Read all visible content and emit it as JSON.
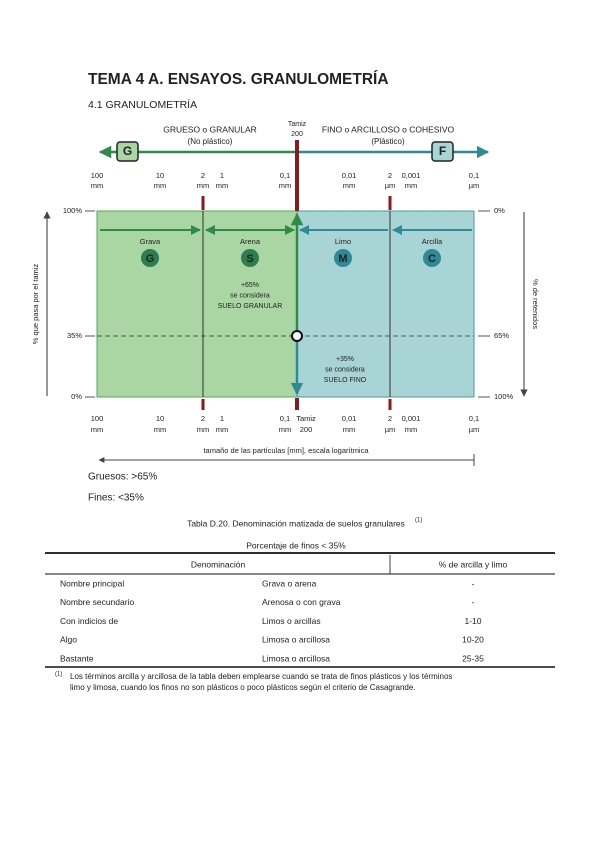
{
  "header": {
    "title": "TEMA 4 A. ENSAYOS. GRANULOMETRÍA",
    "subtitle": "4.1 GRANULOMETRÍA"
  },
  "diagram": {
    "coarse_label": "GRUESO o GRANULAR",
    "coarse_note": "(No plástico)",
    "fine_label": "FINO o ARCILLOSO o COHESIVO",
    "fine_note": "(Plástico)",
    "sieve_top": [
      "Tamiz",
      "200"
    ],
    "coarse_badge": "G",
    "fine_badge": "F",
    "top_scale": [
      {
        "value": "100",
        "unit": "mm"
      },
      {
        "value": "10",
        "unit": "mm"
      },
      {
        "value": "2",
        "unit": "mm"
      },
      {
        "value": "1",
        "unit": "mm"
      },
      {
        "value": "0,1",
        "unit": "mm"
      },
      {
        "value": "0,01",
        "unit": "mm"
      },
      {
        "value": "2",
        "unit": "µm"
      },
      {
        "value": "0,001",
        "unit": "mm"
      },
      {
        "value": "0,1",
        "unit": "µm"
      }
    ],
    "bottom_scale": [
      {
        "value": "100",
        "unit": "mm"
      },
      {
        "value": "10",
        "unit": "mm"
      },
      {
        "value": "2",
        "unit": "mm"
      },
      {
        "value": "1",
        "unit": "mm"
      },
      {
        "value": "0,1",
        "unit": "mm"
      },
      {
        "value": "Tamiz",
        "unit": "200"
      },
      {
        "value": "0,01",
        "unit": "mm"
      },
      {
        "value": "2",
        "unit": "µm"
      },
      {
        "value": "0,001",
        "unit": "mm"
      },
      {
        "value": "0,1",
        "unit": "µm"
      }
    ],
    "left_axis": {
      "title": "% que pasa por el tamiz",
      "ticks": [
        "100%",
        "35%",
        "0%"
      ]
    },
    "right_axis": {
      "title": "% de retenidos",
      "ticks": [
        "0%",
        "65%",
        "100%"
      ]
    },
    "zones": [
      {
        "name": "Grava",
        "badge": "G"
      },
      {
        "name": "Arena",
        "badge": "S"
      },
      {
        "name": "Limo",
        "badge": "M"
      },
      {
        "name": "Arcilla",
        "badge": "C"
      }
    ],
    "coarse_box": [
      "+65%",
      "se considera",
      "SUELO GRANULAR"
    ],
    "fine_box": [
      "+35%",
      "se considera",
      "SUELO FINO"
    ],
    "x_axis_title": "tamaño de las partículas [mm], escala logarítmica"
  },
  "criteria": [
    "Gruesos: >65%",
    "Fines: <35%"
  ],
  "table": {
    "caption": "Tabla D.20. Denominación matizada de suelos granulares",
    "caption_ref": "(1)",
    "group": "Porcentaje de finos < 35%",
    "headers": [
      "Denominación",
      "% de arcilla y limo"
    ],
    "rows": [
      [
        "Nombre principal",
        "Grava o arena",
        "-"
      ],
      [
        "Nombre secundario",
        "Arenosa o con grava",
        "-"
      ],
      [
        "Con indicios de",
        "Limos o arcillas",
        "1-10"
      ],
      [
        "Algo",
        "Limosa o arcillosa",
        "10-20"
      ],
      [
        "Bastante",
        "Limosa o arcillosa",
        "25-35"
      ]
    ]
  },
  "footnote": {
    "ref": "(1)",
    "lines": [
      "Los términos arcilla y arcillosa de la tabla deben emplearse cuando se trata de finos plásticos y los términos",
      "limo y limosa, cuando los finos no son plásticos o poco plásticos según el criterio de Casagrande."
    ]
  }
}
